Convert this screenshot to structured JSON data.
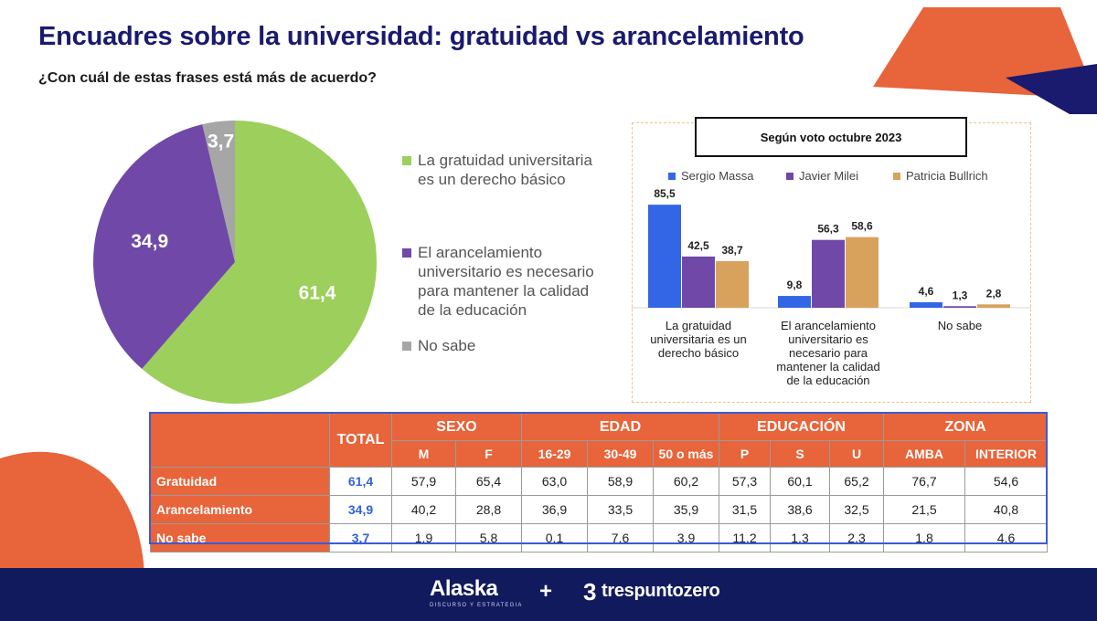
{
  "title": "Encuadres sobre la universidad: gratuidad vs arancelamiento",
  "subtitle": "¿Con cuál de estas frases está más de acuerdo?",
  "colors": {
    "green": "#9ccf5c",
    "purple": "#7048a8",
    "gray": "#a6a6a6",
    "massa": "#3366e6",
    "milei": "#7048a8",
    "bullrich": "#d8a25c",
    "orange": "#e8643a",
    "navy": "#121a5e",
    "title": "#1a1a6e"
  },
  "chart_data": [
    {
      "type": "pie",
      "labels": [
        "La gratuidad universitaria es un derecho básico",
        "El arancelamiento universitario es necesario para mantener la calidad de la educación",
        "No sabe"
      ],
      "values": [
        61.4,
        34.9,
        3.7
      ],
      "value_labels": [
        "61,4",
        "34,9",
        "3,7"
      ],
      "legend_lines": [
        [
          "La gratuidad universitaria",
          "es un derecho básico"
        ],
        [
          "El arancelamiento",
          "universitario es necesario",
          "para mantener la calidad",
          "de la educación"
        ],
        [
          "No sabe"
        ]
      ],
      "legend_placement": "right"
    },
    {
      "type": "bar",
      "title": "Según voto octubre 2023",
      "categories": [
        "La gratuidad universitaria es un derecho básico",
        "El arancelamiento universitario es necesario para mantener la calidad de la educación",
        "No sabe"
      ],
      "category_lines": [
        [
          "La gratuidad",
          "universitaria es un",
          "derecho básico"
        ],
        [
          "El arancelamiento",
          "universitario es",
          "necesario para",
          "mantener la calidad",
          "de la educación"
        ],
        [
          "No sabe"
        ]
      ],
      "series": [
        {
          "name": "Sergio Massa",
          "values": [
            85.5,
            9.8,
            4.6
          ],
          "labels": [
            "85,5",
            "9,8",
            "4,6"
          ]
        },
        {
          "name": "Javier Milei",
          "values": [
            42.5,
            56.3,
            1.3
          ],
          "labels": [
            "42,5",
            "56,3",
            "1,3"
          ]
        },
        {
          "name": "Patricia Bullrich",
          "values": [
            38.7,
            58.6,
            2.8
          ],
          "labels": [
            "38,7",
            "58,6",
            "2,8"
          ]
        }
      ],
      "ylim": [
        0,
        100
      ],
      "legend_placement": "top",
      "grid": false
    }
  ],
  "table": {
    "total_header": "TOTAL",
    "groups": [
      {
        "name": "SEXO",
        "cols": [
          "M",
          "F"
        ]
      },
      {
        "name": "EDAD",
        "cols": [
          "16-29",
          "30-49",
          "50 o más"
        ]
      },
      {
        "name": "EDUCACIÓN",
        "cols": [
          "P",
          "S",
          "U"
        ]
      },
      {
        "name": "ZONA",
        "cols": [
          "AMBA",
          "INTERIOR"
        ]
      }
    ],
    "rows": [
      {
        "label": "Gratuidad",
        "total": "61,4",
        "values": [
          "57,9",
          "65,4",
          "63,0",
          "58,9",
          "60,2",
          "57,3",
          "60,1",
          "65,2",
          "76,7",
          "54,6"
        ]
      },
      {
        "label": "Arancelamiento",
        "total": "34,9",
        "values": [
          "40,2",
          "28,8",
          "36,9",
          "33,5",
          "35,9",
          "31,5",
          "38,6",
          "32,5",
          "21,5",
          "40,8"
        ]
      },
      {
        "label": "No sabe",
        "total": "3,7",
        "values": [
          "1,9",
          "5,8",
          "0,1",
          "7,6",
          "3,9",
          "11,2",
          "1,3",
          "2,3",
          "1,8",
          "4,6"
        ]
      }
    ]
  },
  "footer": {
    "brand1": "Alaska",
    "brand1_tagline": "DISCURSO Y ESTRATEGIA",
    "plus": "+",
    "brand2_icon": "3",
    "brand2": "trespuntozero"
  }
}
